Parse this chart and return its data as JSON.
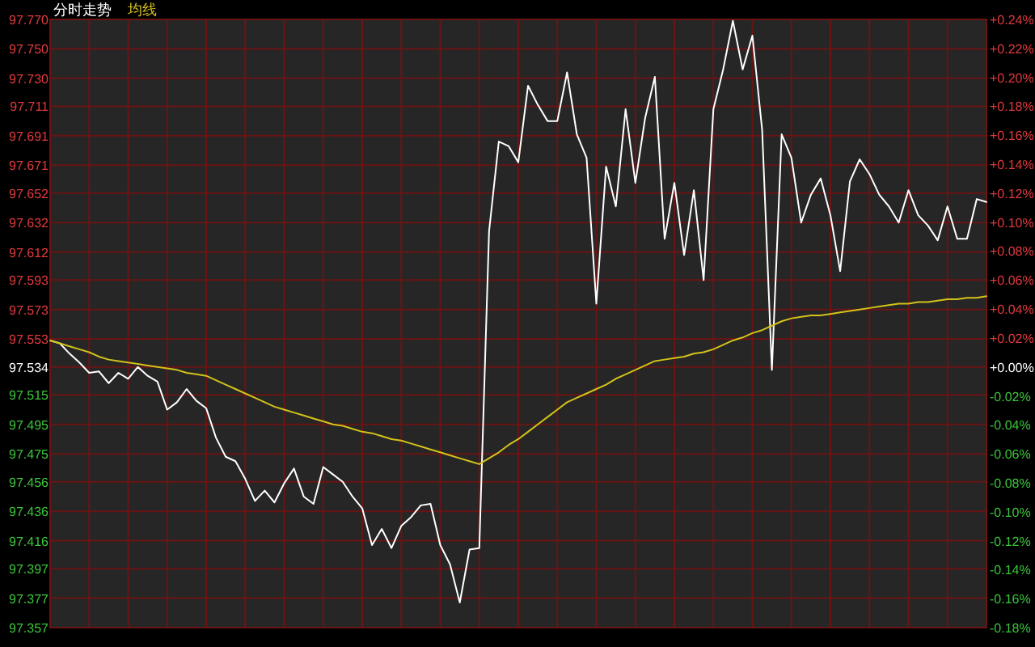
{
  "chart_data": {
    "type": "line",
    "grid": true,
    "tick_labels": "y",
    "marker": "none",
    "line_style": "solid",
    "categories": [
      null,
      null,
      null,
      null,
      null,
      null,
      null,
      null,
      null,
      null,
      null,
      null,
      null,
      null,
      null,
      null,
      null,
      null,
      null,
      null,
      null,
      null,
      null,
      null,
      null,
      null,
      null,
      null,
      null,
      null,
      null,
      null,
      null,
      null,
      null,
      null,
      null,
      null,
      null,
      null,
      null,
      null,
      null,
      null,
      null,
      null,
      null,
      null,
      null,
      null,
      null,
      null,
      null,
      null,
      null,
      null,
      null,
      null,
      null,
      null,
      null,
      null,
      null,
      null,
      null,
      null,
      null,
      null,
      null,
      null,
      null,
      null,
      null,
      null,
      null,
      null,
      null,
      null,
      null,
      null,
      null,
      null,
      null,
      null,
      null,
      null,
      null,
      null,
      null,
      null,
      null,
      null,
      null,
      null,
      null,
      null,
      null
    ],
    "ylim": [
      97.357,
      97.77
    ],
    "yticks": [
      {
        "value": 97.77,
        "label": "97.770"
      },
      {
        "value": 97.75,
        "label": "97.750"
      },
      {
        "value": 97.73,
        "label": "97.730"
      },
      {
        "value": 97.711,
        "label": "97.711"
      },
      {
        "value": 97.691,
        "label": "97.691"
      },
      {
        "value": 97.671,
        "label": "97.671"
      },
      {
        "value": 97.652,
        "label": "97.652"
      },
      {
        "value": 97.632,
        "label": "97.632"
      },
      {
        "value": 97.612,
        "label": "97.612"
      },
      {
        "value": 97.593,
        "label": "97.593"
      },
      {
        "value": 97.573,
        "label": "97.573"
      },
      {
        "value": 97.553,
        "label": "97.553"
      },
      {
        "value": 97.534,
        "label": "97.534"
      },
      {
        "value": 97.515,
        "label": "97.515"
      },
      {
        "value": 97.495,
        "label": "97.495"
      },
      {
        "value": 97.475,
        "label": "97.475"
      },
      {
        "value": 97.456,
        "label": "97.456"
      },
      {
        "value": 97.436,
        "label": "97.436"
      },
      {
        "value": 97.416,
        "label": "97.416"
      },
      {
        "value": 97.397,
        "label": "97.397"
      },
      {
        "value": 97.377,
        "label": "97.377"
      },
      {
        "value": 97.357,
        "label": "97.357"
      }
    ],
    "y2lim": [
      -0.18,
      0.24
    ],
    "y2ticks": [
      {
        "value": 0.24,
        "label": "+0.24%"
      },
      {
        "value": 0.22,
        "label": "+0.22%"
      },
      {
        "value": 0.2,
        "label": "+0.20%"
      },
      {
        "value": 0.18,
        "label": "+0.18%"
      },
      {
        "value": 0.16,
        "label": "+0.16%"
      },
      {
        "value": 0.14,
        "label": "+0.14%"
      },
      {
        "value": 0.12,
        "label": "+0.12%"
      },
      {
        "value": 0.1,
        "label": "+0.10%"
      },
      {
        "value": 0.08,
        "label": "+0.08%"
      },
      {
        "value": 0.06,
        "label": "+0.06%"
      },
      {
        "value": 0.04,
        "label": "+0.04%"
      },
      {
        "value": 0.02,
        "label": "+0.02%"
      },
      {
        "value": 0,
        "label": "+0.00%"
      },
      {
        "value": -0.02,
        "label": "-0.02%"
      },
      {
        "value": -0.04,
        "label": "-0.04%"
      },
      {
        "value": -0.06,
        "label": "-0.06%"
      },
      {
        "value": -0.08,
        "label": "-0.08%"
      },
      {
        "value": -0.1,
        "label": "-0.10%"
      },
      {
        "value": -0.12,
        "label": "-0.12%"
      },
      {
        "value": -0.14,
        "label": "-0.14%"
      },
      {
        "value": -0.16,
        "label": "-0.16%"
      },
      {
        "value": -0.18,
        "label": "-0.18%"
      }
    ],
    "series": [
      {
        "name": "分时走势",
        "color": "#ffffff",
        "values": [
          97.552,
          97.55,
          97.543,
          97.537,
          97.53,
          97.531,
          97.523,
          97.53,
          97.526,
          97.534,
          97.528,
          97.524,
          97.505,
          97.51,
          97.519,
          97.511,
          97.506,
          97.486,
          97.473,
          97.47,
          97.458,
          97.443,
          97.45,
          97.442,
          97.455,
          97.465,
          97.446,
          97.441,
          97.466,
          97.461,
          97.456,
          97.446,
          97.438,
          97.413,
          97.424,
          97.411,
          97.426,
          97.432,
          97.44,
          97.441,
          97.413,
          97.4,
          97.374,
          97.41,
          97.411,
          97.626,
          97.687,
          97.684,
          97.673,
          97.725,
          97.712,
          97.701,
          97.701,
          97.734,
          97.692,
          97.676,
          97.577,
          97.67,
          97.643,
          97.709,
          97.659,
          97.703,
          97.731,
          97.621,
          97.659,
          97.61,
          97.654,
          97.593,
          97.709,
          97.736,
          97.769,
          97.736,
          97.759,
          97.695,
          97.532,
          97.692,
          97.676,
          97.632,
          97.651,
          97.662,
          97.637,
          97.599,
          97.66,
          97.675,
          97.665,
          97.651,
          97.643,
          97.632,
          97.654,
          97.637,
          97.63,
          97.62,
          97.643,
          97.621,
          97.621,
          97.648,
          97.646
        ]
      },
      {
        "name": "均线",
        "color": "#d4c21a",
        "values": [
          97.552,
          97.55,
          97.548,
          97.546,
          97.544,
          97.541,
          97.539,
          97.538,
          97.537,
          97.536,
          97.535,
          97.534,
          97.533,
          97.532,
          97.53,
          97.529,
          97.528,
          97.525,
          97.522,
          97.519,
          97.516,
          97.513,
          97.51,
          97.507,
          97.505,
          97.503,
          97.501,
          97.499,
          97.497,
          97.495,
          97.494,
          97.492,
          97.49,
          97.489,
          97.487,
          97.485,
          97.484,
          97.482,
          97.48,
          97.478,
          97.476,
          97.474,
          97.472,
          97.47,
          97.468,
          97.472,
          97.476,
          97.481,
          97.485,
          97.49,
          97.495,
          97.5,
          97.505,
          97.51,
          97.513,
          97.516,
          97.519,
          97.522,
          97.526,
          97.529,
          97.532,
          97.535,
          97.538,
          97.539,
          97.54,
          97.541,
          97.543,
          97.544,
          97.546,
          97.549,
          97.552,
          97.554,
          97.557,
          97.559,
          97.562,
          97.565,
          97.567,
          97.568,
          97.569,
          97.569,
          97.57,
          97.571,
          97.572,
          97.573,
          97.574,
          97.575,
          97.576,
          97.577,
          97.577,
          97.578,
          97.578,
          97.579,
          97.58,
          97.58,
          97.581,
          97.581,
          97.582
        ]
      }
    ]
  }
}
